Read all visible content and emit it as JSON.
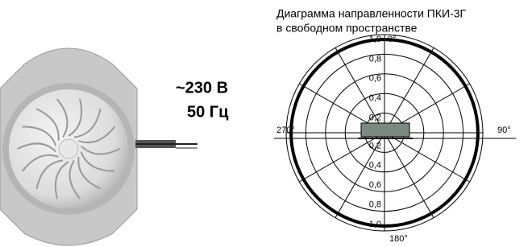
{
  "device": {
    "voltage": "~230 В",
    "frequency": "50 Гц"
  },
  "diagram": {
    "title": [
      "Диаграмма направленности ПКИ-3Г",
      "в свободном пространстве"
    ],
    "labels_top": [
      "1,0",
      "0,8",
      "0,6",
      "0,4",
      "0,2"
    ],
    "labels_bottom": [
      "0,2",
      "0,4",
      "0,6",
      "0,8",
      "1,0"
    ],
    "angles": {
      "top": "0°",
      "right": "90°",
      "bottom": "180°",
      "left": "270°"
    }
  }
}
